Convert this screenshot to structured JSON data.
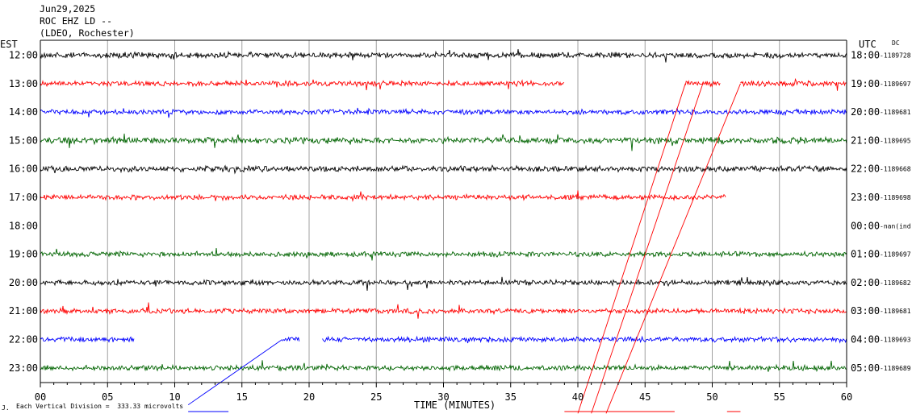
{
  "header": {
    "date": "Jun29,2025",
    "station": "ROC EHZ LD --",
    "network": "(LDEO, Rochester)"
  },
  "chart_data": {
    "type": "line",
    "title": "ROC EHZ LD --",
    "xlabel": "TIME (MINUTES)",
    "left_axis_label": "EST",
    "right_axis_label": "UTC",
    "dc_label": "DC",
    "xlim": [
      0,
      60
    ],
    "x_ticks": [
      "00",
      "05",
      "10",
      "15",
      "20",
      "25",
      "30",
      "35",
      "40",
      "45",
      "50",
      "55",
      "60"
    ],
    "grid": true,
    "vertical_division": "Each Vertical Division =  333.33 microvolts",
    "traces": [
      {
        "est": "12:00",
        "utc": "18:00",
        "dc": "-1189728",
        "color": "#000000",
        "segments": [
          [
            0,
            60
          ]
        ],
        "amp": 0.9
      },
      {
        "est": "13:00",
        "utc": "19:00",
        "dc": "-1189697",
        "color": "#ff0000",
        "segments": [
          [
            0,
            39
          ],
          [
            48,
            50.6
          ],
          [
            52.1,
            60
          ]
        ],
        "amp": 0.8
      },
      {
        "est": "14:00",
        "utc": "20:00",
        "dc": "-1189681",
        "color": "#0000ff",
        "segments": [
          [
            0,
            60
          ]
        ],
        "amp": 0.8
      },
      {
        "est": "15:00",
        "utc": "21:00",
        "dc": "-1189695",
        "color": "#006400",
        "segments": [
          [
            0,
            60
          ]
        ],
        "amp": 1.0
      },
      {
        "est": "16:00",
        "utc": "22:00",
        "dc": "-1189668",
        "color": "#000000",
        "segments": [
          [
            0,
            60
          ]
        ],
        "amp": 0.9
      },
      {
        "est": "17:00",
        "utc": "23:00",
        "dc": "-1189698",
        "color": "#ff0000",
        "segments": [
          [
            0,
            51
          ]
        ],
        "amp": 0.8
      },
      {
        "est": "18:00",
        "utc": "00:00",
        "dc": "-nan(ind",
        "color": "#006400",
        "segments": [],
        "amp": 0
      },
      {
        "est": "19:00",
        "utc": "01:00",
        "dc": "-1189697",
        "color": "#006400",
        "segments": [
          [
            0,
            60
          ]
        ],
        "amp": 0.8
      },
      {
        "est": "20:00",
        "utc": "02:00",
        "dc": "-1189682",
        "color": "#000000",
        "segments": [
          [
            0,
            60
          ]
        ],
        "amp": 0.8
      },
      {
        "est": "21:00",
        "utc": "03:00",
        "dc": "-1189681",
        "color": "#ff0000",
        "segments": [
          [
            0,
            60
          ]
        ],
        "amp": 0.8
      },
      {
        "est": "22:00",
        "utc": "04:00",
        "dc": "-1189693",
        "color": "#0000ff",
        "segments": [
          [
            0,
            7
          ],
          [
            18,
            19.3
          ],
          [
            21,
            60
          ]
        ],
        "amp": 0.8
      },
      {
        "est": "23:00",
        "utc": "05:00",
        "dc": "-1189689",
        "color": "#006400",
        "segments": [
          [
            0,
            60
          ]
        ],
        "amp": 0.8
      }
    ],
    "connector_lines": [
      {
        "color": "#ff0000",
        "from": {
          "trace": 1,
          "x": 48
        },
        "to": {
          "trace": 12.6,
          "x": 40
        }
      },
      {
        "color": "#ff0000",
        "from": {
          "trace": 1,
          "x": 49.3
        },
        "to": {
          "trace": 12.6,
          "x": 41
        }
      },
      {
        "color": "#ff0000",
        "from": {
          "trace": 1,
          "x": 52.1
        },
        "to": {
          "trace": 12.6,
          "x": 42.1
        }
      },
      {
        "color": "#0000ff",
        "from": {
          "trace": 10,
          "x": 18
        },
        "to": {
          "trace": 12.3,
          "x": 11
        }
      }
    ],
    "footer_bars": [
      {
        "color": "#0000ff",
        "x0": 11,
        "x1": 14
      },
      {
        "color": "#ff0000",
        "x0": 39,
        "x1": 47.2
      },
      {
        "color": "#ff0000",
        "x0": 51.1,
        "x1": 52.1
      }
    ]
  }
}
